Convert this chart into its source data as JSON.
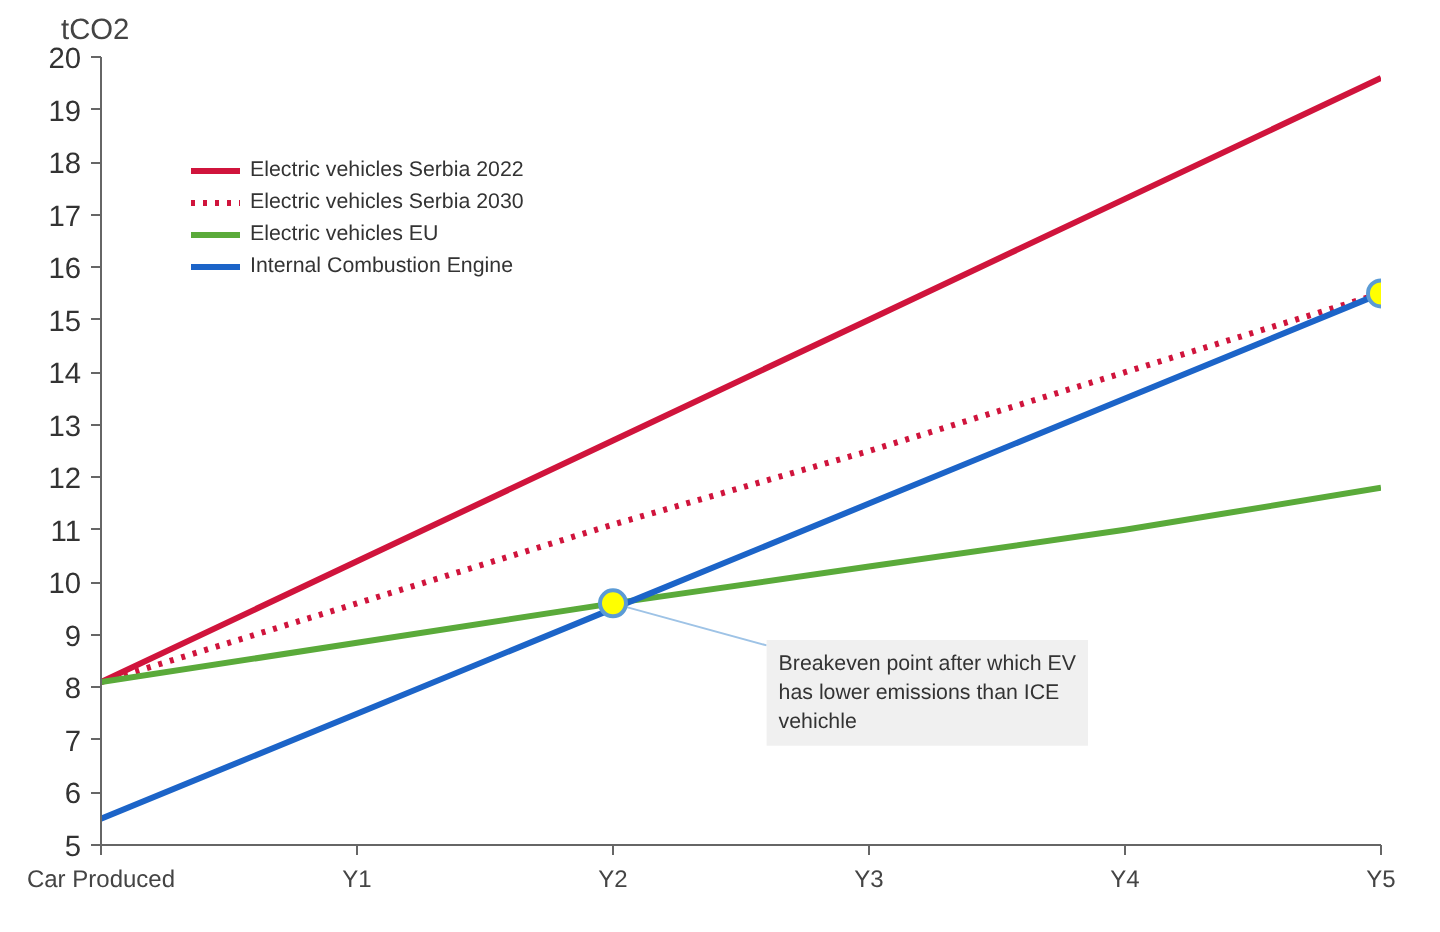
{
  "chart_data": {
    "type": "line",
    "ylabel": "tCO2",
    "categories": [
      "Car Produced",
      "Y1",
      "Y2",
      "Y3",
      "Y4",
      "Y5"
    ],
    "ylim": [
      5,
      20
    ],
    "yticks": [
      5,
      6,
      7,
      8,
      9,
      10,
      11,
      12,
      13,
      14,
      15,
      16,
      17,
      18,
      19,
      20
    ],
    "grid": false,
    "legend": "top left",
    "marker": "none",
    "series": [
      {
        "name": "Electric vehicles Serbia 2022",
        "color": "#d0143c",
        "values": [
          8.1,
          10.4,
          12.7,
          15.0,
          17.3,
          19.6
        ],
        "line_style": "solid"
      },
      {
        "name": "Electric vehicles Serbia 2030",
        "color": "#d0143c",
        "values": [
          8.1,
          9.6,
          11.1,
          12.5,
          14.0,
          15.5
        ],
        "line_style": "dotted"
      },
      {
        "name": "Electric vehicles EU",
        "color": "#5aaa3a",
        "values": [
          8.1,
          8.85,
          9.6,
          10.3,
          11.0,
          11.8
        ],
        "line_style": "solid"
      },
      {
        "name": "Internal Combustion Engine",
        "color": "#1c64c8",
        "values": [
          5.5,
          7.5,
          9.5,
          11.5,
          13.5,
          15.5
        ],
        "line_style": "solid"
      },
      {
        "type": "scatter",
        "color": "#ffff00",
        "values": [
          null,
          null,
          9.6,
          null,
          null,
          15.5
        ],
        "marker": "circle"
      }
    ],
    "annotations": [
      {
        "text": "Breakeven point after which EV has lower emissions than ICE vehichle",
        "x": "Y2",
        "y": 9.6
      }
    ]
  }
}
